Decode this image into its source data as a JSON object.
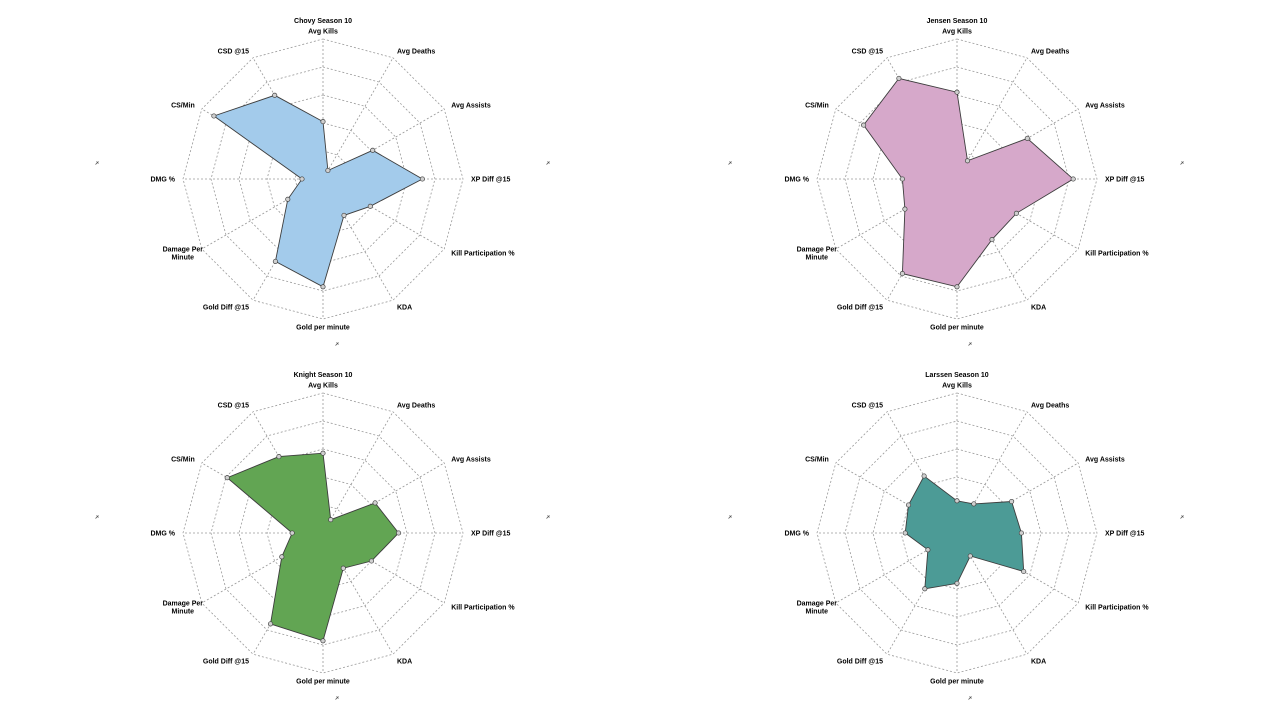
{
  "chart_data": [
    {
      "type": "radar",
      "title": "Chovy Season 10",
      "color": "#a3cbeb",
      "axes": [
        "Avg Kills",
        "Avg Deaths",
        "Avg Assists",
        "XP Diff @15",
        "Kill Participation %",
        "KDA",
        "Gold per minute",
        "Gold Diff @15",
        "Damage Per Minute",
        "DMG %",
        "CS/Min",
        "CSD @15"
      ],
      "values": [
        0.41,
        0.07,
        0.41,
        0.71,
        0.39,
        0.3,
        0.77,
        0.68,
        0.29,
        0.15,
        0.9,
        0.69
      ],
      "rmax": 1,
      "grid_rings": 5
    },
    {
      "type": "radar",
      "title": "Jensen Season 10",
      "color": "#d6a8ca",
      "axes": [
        "Avg Kills",
        "Avg Deaths",
        "Avg Assists",
        "XP Diff @15",
        "Kill Participation %",
        "KDA",
        "Gold per minute",
        "Gold Diff @15",
        "Damage Per Minute",
        "DMG %",
        "CS/Min",
        "CSD @15"
      ],
      "values": [
        0.62,
        0.15,
        0.58,
        0.83,
        0.49,
        0.5,
        0.77,
        0.78,
        0.43,
        0.39,
        0.77,
        0.83
      ],
      "rmax": 1,
      "grid_rings": 5
    },
    {
      "type": "radar",
      "title": "Knight Season 10",
      "color": "#62a553",
      "axes": [
        "Avg Kills",
        "Avg Deaths",
        "Avg Assists",
        "XP Diff @15",
        "Kill Participation %",
        "KDA",
        "Gold per minute",
        "Gold Diff @15",
        "Damage Per Minute",
        "DMG %",
        "CS/Min",
        "CSD @15"
      ],
      "values": [
        0.57,
        0.11,
        0.43,
        0.54,
        0.4,
        0.29,
        0.77,
        0.75,
        0.34,
        0.22,
        0.79,
        0.63
      ],
      "rmax": 1,
      "grid_rings": 5
    },
    {
      "type": "radar",
      "title": "Larssen Season 10",
      "color": "#4c9b96",
      "axes": [
        "Avg Kills",
        "Avg Deaths",
        "Avg Assists",
        "XP Diff @15",
        "Kill Participation %",
        "KDA",
        "Gold per minute",
        "Gold Diff @15",
        "Damage Per Minute",
        "DMG %",
        "CS/Min",
        "CSD @15"
      ],
      "values": [
        0.23,
        0.24,
        0.45,
        0.46,
        0.55,
        0.19,
        0.36,
        0.46,
        0.24,
        0.37,
        0.4,
        0.47
      ],
      "rmax": 1,
      "grid_rings": 5
    }
  ]
}
